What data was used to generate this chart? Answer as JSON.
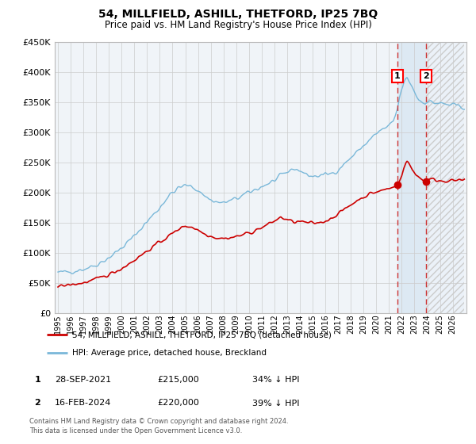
{
  "title": "54, MILLFIELD, ASHILL, THETFORD, IP25 7BQ",
  "subtitle": "Price paid vs. HM Land Registry's House Price Index (HPI)",
  "legend_line1": "54, MILLFIELD, ASHILL, THETFORD, IP25 7BQ (detached house)",
  "legend_line2": "HPI: Average price, detached house, Breckland",
  "hpi_color": "#7ab8d9",
  "price_color": "#cc0000",
  "marker1_date": "28-SEP-2021",
  "marker2_date": "16-FEB-2024",
  "marker1_price_str": "£215,000",
  "marker2_price_str": "£220,000",
  "marker1_pct": "34% ↓ HPI",
  "marker2_pct": "39% ↓ HPI",
  "marker1_price": 215000,
  "marker2_price": 220000,
  "ylim_max": 450000,
  "ylim_min": 0,
  "start_year": 1995,
  "n_months": 384,
  "idx1": 320,
  "idx2": 347,
  "footer_line1": "Contains HM Land Registry data © Crown copyright and database right 2024.",
  "footer_line2": "This data is licensed under the Open Government Licence v3.0.",
  "bg_color": "#ffffff",
  "plot_bg_color": "#f0f4f8",
  "shade_color": "#cce0f0",
  "hatch_color": "#bbbbbb"
}
